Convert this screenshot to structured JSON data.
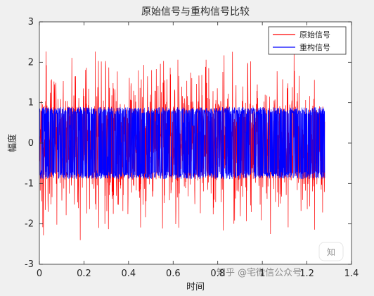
{
  "chart_data": {
    "type": "line",
    "title": "原始信号与重构信号比较",
    "xlabel": "时间",
    "ylabel": "幅度",
    "xlim": [
      0,
      1.4
    ],
    "ylim": [
      -3,
      3
    ],
    "xticks": [
      0,
      0.2,
      0.4,
      0.6,
      0.8,
      1,
      1.2,
      1.4
    ],
    "xtick_labels": [
      "0",
      "0.2",
      "0.4",
      "0.6",
      "0.8",
      "1",
      "1.2",
      "1.4"
    ],
    "yticks": [
      -3,
      -2,
      -1,
      0,
      1,
      2,
      3
    ],
    "ytick_labels": [
      "-3",
      "-2",
      "-1",
      "0",
      "1",
      "2",
      "3"
    ],
    "grid": false,
    "legend_position": "top-right",
    "x_range": [
      0,
      1.28
    ],
    "series": [
      {
        "name": "原始信号",
        "color": "#ff0000",
        "typical_amplitude": 1.3,
        "peak_range": [
          -2.5,
          2.35
        ]
      },
      {
        "name": "重构信号",
        "color": "#0000ff",
        "typical_amplitude": 0.8,
        "peak_range": [
          -1.1,
          1.15
        ]
      }
    ]
  },
  "watermark": {
    "text": "知乎 @宅微信公众号"
  }
}
